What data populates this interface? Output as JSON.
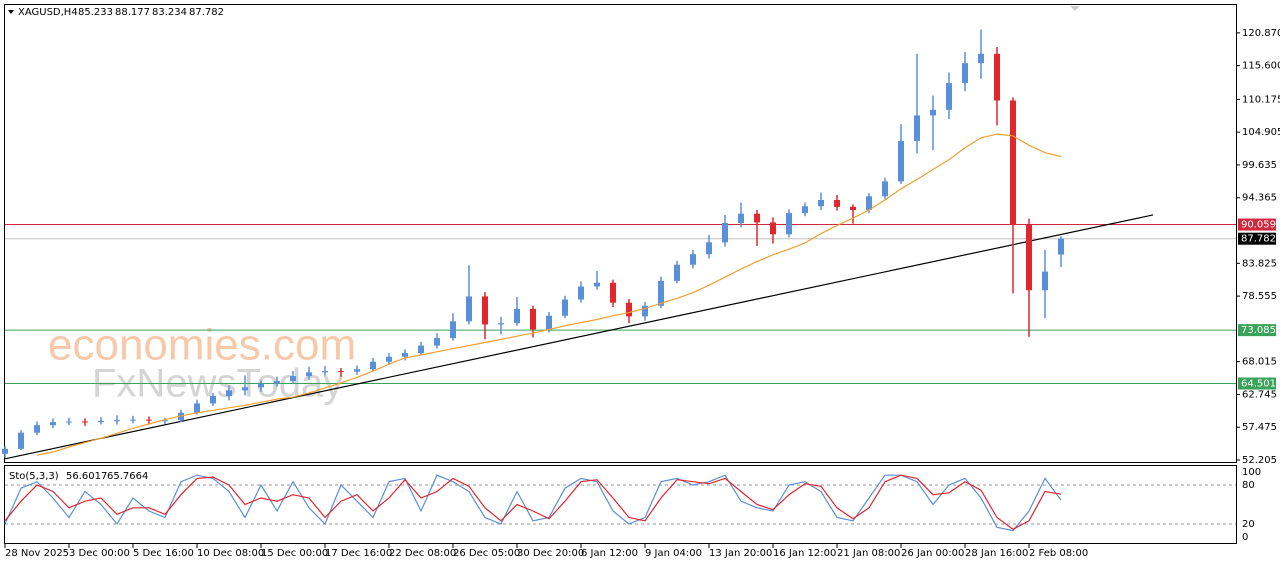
{
  "chart_data": [
    {
      "type": "candlestick",
      "symbol": "XAGUSD,H4",
      "x": [
        0,
        4,
        8,
        12,
        16,
        20,
        24,
        28,
        32,
        36,
        40,
        44,
        48,
        52,
        56,
        60,
        64,
        68,
        72,
        76,
        80,
        84,
        88,
        92,
        96,
        100,
        104,
        108,
        112,
        116,
        120,
        124,
        128,
        132,
        136,
        140,
        144,
        148,
        152,
        156,
        160,
        164,
        168,
        172,
        176,
        180,
        184,
        188,
        192,
        196,
        200,
        204,
        208,
        212,
        216,
        220,
        224,
        228,
        232,
        236,
        240,
        244,
        248,
        252,
        256,
        260,
        264
      ],
      "open": [
        53.2,
        54.0,
        56.6,
        57.8,
        58.3,
        58.4,
        58.3,
        58.5,
        58.6,
        58.7,
        58.6,
        58.6,
        59.8,
        61.3,
        62.5,
        63.4,
        63.9,
        64.5,
        64.9,
        65.7,
        66.3,
        66.5,
        66.4,
        66.8,
        68.0,
        68.8,
        69.4,
        70.6,
        71.8,
        74.5,
        78.5,
        74.0,
        74.2,
        76.5,
        73.2,
        75.4,
        78.0,
        80.1,
        80.7,
        77.5,
        75.3,
        77.0,
        81.0,
        83.6,
        85.3,
        87.2,
        90.3,
        91.8,
        90.4,
        88.5,
        91.9,
        93.0,
        94.0,
        92.9,
        92.4,
        94.6,
        97.0,
        103.5,
        107.6,
        108.5,
        112.8,
        116.0,
        117.5,
        110.0,
        90.0,
        79.5,
        85.233
      ],
      "high": [
        54.5,
        57.0,
        58.4,
        58.9,
        59.0,
        58.9,
        59.1,
        59.4,
        59.3,
        59.2,
        59.0,
        60.3,
        61.9,
        63.0,
        64.2,
        65.8,
        65.0,
        65.6,
        66.5,
        67.2,
        67.3,
        67.0,
        67.4,
        68.6,
        69.4,
        70.0,
        71.2,
        72.6,
        75.8,
        83.5,
        79.2,
        75.2,
        78.4,
        77.0,
        76.0,
        78.6,
        80.9,
        82.6,
        81.2,
        78.1,
        77.6,
        81.7,
        84.2,
        86.0,
        88.4,
        91.6,
        93.6,
        92.4,
        91.2,
        92.5,
        93.6,
        95.2,
        94.8,
        93.3,
        95.1,
        97.6,
        106.2,
        117.5,
        110.8,
        114.5,
        117.8,
        121.4,
        118.6,
        110.5,
        91.0,
        86.0,
        88.177
      ],
      "low": [
        52.6,
        53.8,
        56.2,
        57.3,
        57.8,
        57.7,
        57.9,
        57.9,
        58.1,
        57.9,
        58.0,
        58.3,
        59.5,
        60.9,
        61.8,
        62.6,
        63.2,
        64.0,
        64.4,
        65.1,
        65.8,
        65.6,
        65.9,
        66.4,
        67.5,
        68.2,
        69.0,
        70.1,
        71.4,
        74.0,
        71.6,
        72.4,
        73.8,
        71.9,
        72.7,
        75.0,
        77.5,
        79.6,
        76.8,
        74.2,
        74.6,
        76.6,
        80.6,
        83.0,
        84.6,
        86.5,
        89.6,
        86.6,
        87.0,
        88.0,
        91.4,
        92.4,
        92.3,
        90.2,
        91.9,
        94.1,
        96.6,
        101.5,
        102.0,
        107.0,
        111.5,
        113.5,
        106.0,
        79.0,
        72.0,
        75.0,
        83.234
      ],
      "close": [
        54.0,
        56.6,
        57.8,
        58.3,
        58.4,
        58.3,
        58.5,
        58.6,
        58.7,
        58.6,
        58.6,
        59.8,
        61.3,
        62.5,
        63.4,
        63.9,
        64.5,
        64.9,
        65.7,
        66.3,
        66.5,
        66.4,
        66.8,
        68.0,
        68.8,
        69.4,
        70.6,
        71.8,
        74.5,
        78.5,
        74.0,
        74.2,
        76.5,
        73.2,
        75.4,
        78.0,
        80.1,
        80.7,
        77.5,
        75.3,
        77.0,
        81.0,
        83.6,
        85.3,
        87.2,
        90.3,
        91.8,
        90.4,
        88.5,
        91.9,
        93.0,
        94.0,
        92.9,
        92.4,
        94.6,
        97.0,
        103.5,
        107.6,
        108.5,
        112.8,
        116.0,
        117.5,
        110.0,
        90.0,
        79.5,
        82.5,
        87.782
      ],
      "up_color": "#5b8fd8",
      "down_color": "#e0262e",
      "ma": {
        "color": "#f0a030",
        "values": [
          null,
          null,
          53.0,
          53.5,
          54.3,
          55.0,
          55.7,
          56.5,
          57.3,
          58.0,
          58.7,
          59.3,
          59.8,
          60.2,
          60.6,
          61.0,
          61.5,
          62.0,
          62.3,
          63.0,
          63.8,
          64.6,
          65.5,
          66.5,
          67.6,
          68.6,
          69.1,
          69.6,
          70.1,
          70.6,
          71.1,
          71.6,
          72.1,
          72.6,
          73.2,
          73.8,
          74.3,
          74.8,
          75.4,
          75.9,
          76.6,
          77.4,
          78.2,
          79.1,
          80.3,
          81.6,
          82.9,
          84.1,
          85.2,
          86.1,
          87.1,
          88.6,
          89.9,
          91.1,
          92.4,
          94.0,
          95.8,
          97.3,
          98.9,
          100.5,
          102.4,
          104.0,
          104.6,
          104.3,
          102.8,
          101.6,
          101.0
        ]
      },
      "trendline": {
        "color": "#000000",
        "x": [
          0,
          287
        ],
        "y": [
          52.4,
          91.6
        ]
      },
      "levels": [
        {
          "value": 90.059,
          "color": "#d0283c"
        },
        {
          "value": 73.085,
          "color": "#3aa35a"
        },
        {
          "value": 64.501,
          "color": "#3aa35a"
        }
      ],
      "current_color": "#000000",
      "xlim": [
        0,
        307.75
      ],
      "ylim": [
        51.885,
        125.35
      ],
      "yticks": [
        {
          "value": 120.87,
          "label": "120.870"
        },
        {
          "value": 115.6,
          "label": "115.600"
        },
        110.175,
        104.905,
        99.635,
        94.365,
        83.825,
        78.555,
        68.015,
        62.745,
        57.475,
        52.205
      ],
      "xticks": [
        {
          "value": 0,
          "label": "28 Nov 2025"
        },
        {
          "value": 16,
          "label": "3 Dec 00:00"
        },
        {
          "value": 32,
          "label": "5 Dec 16:00"
        },
        {
          "value": 48,
          "label": "10 Dec 08:00"
        },
        {
          "value": 64,
          "label": "15 Dec 00:00"
        },
        {
          "value": 80,
          "label": "17 Dec 16:00"
        },
        {
          "value": 96,
          "label": "22 Dec 08:00"
        },
        {
          "value": 112,
          "label": "26 Dec 05:00"
        },
        {
          "value": 128,
          "label": "30 Dec 20:00"
        },
        {
          "value": 144,
          "label": "6 Jan 12:00"
        },
        {
          "value": 160,
          "label": "9 Jan 04:00"
        },
        {
          "value": 176,
          "label": "13 Jan 20:00"
        },
        {
          "value": 192,
          "label": "16 Jan 12:00"
        },
        {
          "value": 208,
          "label": "21 Jan 08:00"
        },
        {
          "value": 224,
          "label": "26 Jan 00:00"
        },
        {
          "value": 240,
          "label": "28 Jan 16:00"
        },
        {
          "value": 256,
          "label": "2 Feb 08:00"
        }
      ],
      "watermark": [
        "economies.com",
        "FxNewsToday"
      ]
    },
    {
      "type": "line",
      "name": "Sto(5,3,3)",
      "series": [
        {
          "color": "#5b8fd8",
          "values": [
            20,
            75,
            85,
            60,
            30,
            70,
            50,
            20,
            60,
            40,
            30,
            85,
            95,
            90,
            70,
            30,
            80,
            40,
            85,
            45,
            20,
            80,
            55,
            30,
            85,
            90,
            40,
            95,
            85,
            70,
            30,
            20,
            70,
            25,
            30,
            75,
            90,
            85,
            40,
            20,
            30,
            85,
            90,
            80,
            85,
            95,
            55,
            45,
            40,
            80,
            85,
            70,
            30,
            25,
            60,
            95,
            95,
            85,
            50,
            80,
            90,
            60,
            15,
            10,
            40,
            90,
            56.6017
          ]
        },
        {
          "color": "#e0262e",
          "values": [
            25,
            55,
            80,
            70,
            45,
            55,
            60,
            35,
            45,
            45,
            35,
            65,
            90,
            92,
            80,
            50,
            60,
            55,
            65,
            60,
            30,
            55,
            65,
            40,
            60,
            88,
            60,
            70,
            90,
            78,
            45,
            25,
            50,
            40,
            28,
            55,
            85,
            88,
            60,
            30,
            25,
            60,
            88,
            85,
            82,
            90,
            70,
            50,
            42,
            65,
            82,
            78,
            45,
            28,
            45,
            85,
            95,
            90,
            65,
            68,
            85,
            72,
            30,
            12,
            25,
            70,
            65.7664
          ]
        }
      ],
      "ylim": [
        -9.1,
        109.1
      ],
      "yticks": [
        100,
        80,
        20,
        0
      ]
    }
  ]
}
